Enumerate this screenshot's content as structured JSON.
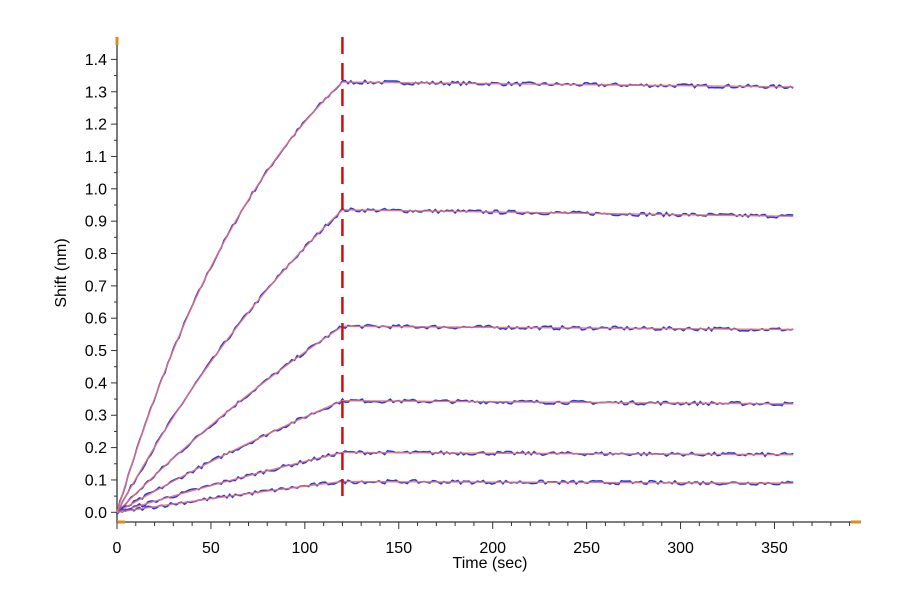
{
  "chart_data": {
    "type": "line",
    "title": "",
    "xlabel": "Time (sec)",
    "ylabel": "Shift (nm)",
    "xlim": [
      0,
      395
    ],
    "ylim": [
      -0.03,
      1.46
    ],
    "x_ticks": [
      0,
      50,
      100,
      150,
      200,
      250,
      300,
      350
    ],
    "y_ticks": [
      0.0,
      0.1,
      0.2,
      0.3,
      0.4,
      0.5,
      0.6,
      0.7,
      0.8,
      0.9,
      1.0,
      1.1,
      1.2,
      1.3,
      1.4
    ],
    "y_tick_labels": [
      "0.0",
      "0.1",
      "0.2",
      "0.3",
      "0.4",
      "0.5",
      "0.6",
      "0.7",
      "0.8",
      "0.9",
      "1.0",
      "1.1",
      "1.2",
      "1.3",
      "1.4"
    ],
    "grid": false,
    "legend": "none",
    "association_end_x": 120,
    "x_end": 360,
    "series": [
      {
        "plateau": 1.33,
        "end": 1.315,
        "rate": 0.0105
      },
      {
        "plateau": 0.935,
        "end": 0.915,
        "rate": 0.0055
      },
      {
        "plateau": 0.575,
        "end": 0.565,
        "rate": 0.0035
      },
      {
        "plateau": 0.345,
        "end": 0.335,
        "rate": 0.0025
      },
      {
        "plateau": 0.185,
        "end": 0.178,
        "rate": 0.002
      },
      {
        "plateau": 0.095,
        "end": 0.09,
        "rate": 0.0018
      }
    ],
    "colors": {
      "data": "#1f3ee8",
      "fit": "#f07070",
      "divider": "#cc1111",
      "axis": "#333333",
      "axis_end_marker": "#e08a1e"
    }
  }
}
